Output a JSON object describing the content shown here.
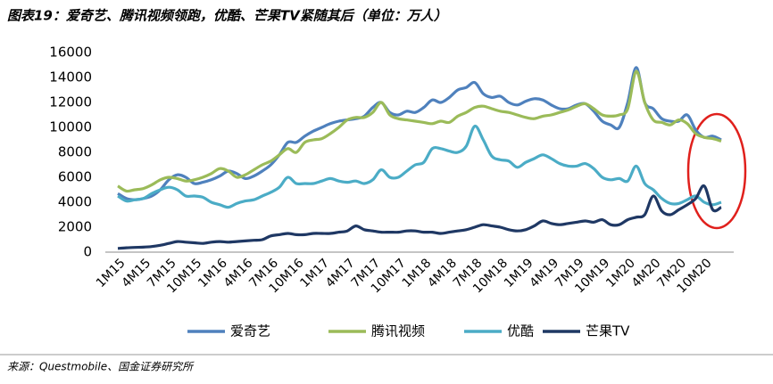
{
  "chart_data": {
    "type": "line",
    "title": "图表19：爱奇艺、腾讯视频领跑，优酷、芒果TV紧随其后（单位：万人）",
    "source": "来源：Questmobile、国金证券研究所",
    "categories": [
      "1M15",
      null,
      null,
      "4M15",
      null,
      null,
      "7M15",
      null,
      null,
      "10M15",
      null,
      null,
      "1M16",
      null,
      null,
      "4M16",
      null,
      null,
      "7M16",
      null,
      null,
      "10M16",
      null,
      null,
      "1M17",
      null,
      null,
      "4M17",
      null,
      null,
      "7M17",
      null,
      null,
      "10M17",
      null,
      null,
      "1M18",
      null,
      null,
      "4M18",
      null,
      null,
      "7M18",
      null,
      null,
      "10M18",
      null,
      null,
      "1M19",
      null,
      null,
      "4M19",
      null,
      null,
      "7M19",
      null,
      null,
      "10M19",
      null,
      null,
      "1M20",
      null,
      null,
      "4M20",
      null,
      null,
      "7M20",
      null,
      null,
      "10M20",
      null,
      null
    ],
    "series": [
      {
        "name": "爱奇艺",
        "color": "#4f81bd",
        "values": [
          4700,
          4300,
          4200,
          4300,
          4500,
          5000,
          5800,
          6200,
          6000,
          5500,
          5600,
          5800,
          6100,
          6500,
          6300,
          5900,
          6100,
          6500,
          7000,
          7800,
          8800,
          8800,
          9300,
          9700,
          10000,
          10300,
          10500,
          10600,
          10700,
          10900,
          11600,
          12000,
          11200,
          11000,
          11300,
          11200,
          11600,
          12200,
          12000,
          12400,
          13000,
          13200,
          13600,
          12700,
          12400,
          12500,
          12000,
          11800,
          12100,
          12300,
          12200,
          11800,
          11500,
          11500,
          11800,
          11900,
          11300,
          10500,
          10200,
          10000,
          12000,
          14800,
          12000,
          11500,
          10700,
          10500,
          10500,
          11000,
          9800,
          9200,
          9300,
          9000
        ]
      },
      {
        "name": "腾讯视频",
        "color": "#9bbb59",
        "values": [
          5300,
          4900,
          5000,
          5100,
          5400,
          5800,
          6000,
          5900,
          5700,
          5800,
          6000,
          6300,
          6700,
          6500,
          6000,
          6200,
          6600,
          7000,
          7300,
          7800,
          8300,
          8000,
          8800,
          9000,
          9100,
          9500,
          10000,
          10600,
          10800,
          10800,
          11200,
          12000,
          11000,
          10700,
          10600,
          10500,
          10400,
          10300,
          10500,
          10400,
          10900,
          11200,
          11600,
          11700,
          11500,
          11300,
          11200,
          11000,
          10800,
          10700,
          10900,
          11000,
          11200,
          11400,
          11700,
          11900,
          11500,
          11000,
          10900,
          11000,
          11500,
          14500,
          12000,
          10600,
          10400,
          10200,
          10600,
          10300,
          9500,
          9200,
          9100,
          8900
        ]
      },
      {
        "name": "优酷",
        "color": "#4bacc6",
        "values": [
          4500,
          4100,
          4200,
          4300,
          4700,
          5000,
          5200,
          5000,
          4500,
          4500,
          4400,
          4000,
          3800,
          3600,
          3900,
          4100,
          4200,
          4500,
          4800,
          5200,
          6000,
          5500,
          5500,
          5500,
          5700,
          5900,
          5700,
          5600,
          5700,
          5500,
          5800,
          6600,
          6000,
          6000,
          6500,
          7000,
          7200,
          8300,
          8300,
          8100,
          8000,
          8500,
          10100,
          9000,
          7700,
          7400,
          7300,
          6800,
          7200,
          7500,
          7800,
          7500,
          7100,
          6900,
          6900,
          7100,
          6700,
          6000,
          5800,
          5900,
          5700,
          6900,
          5500,
          5000,
          4300,
          3900,
          3900,
          4200,
          4500,
          4000,
          3800,
          4000
        ]
      },
      {
        "name": "芒果TV",
        "color": "#1f3864",
        "values": [
          300,
          350,
          380,
          400,
          450,
          550,
          700,
          850,
          800,
          750,
          700,
          800,
          850,
          800,
          850,
          900,
          950,
          1000,
          1300,
          1400,
          1500,
          1400,
          1400,
          1500,
          1500,
          1500,
          1600,
          1700,
          2100,
          1800,
          1700,
          1600,
          1600,
          1600,
          1700,
          1700,
          1600,
          1600,
          1500,
          1600,
          1700,
          1800,
          2000,
          2200,
          2100,
          2000,
          1800,
          1700,
          1800,
          2100,
          2500,
          2300,
          2200,
          2300,
          2400,
          2500,
          2400,
          2600,
          2200,
          2200,
          2600,
          2800,
          3000,
          4500,
          3300,
          3000,
          3400,
          3800,
          4300,
          5300,
          3400,
          3600
        ]
      }
    ],
    "ylim": [
      0,
      16000
    ],
    "yticks": [
      0,
      2000,
      4000,
      6000,
      8000,
      10000,
      12000,
      14000,
      16000
    ],
    "grid": false,
    "legend": "bottom"
  }
}
